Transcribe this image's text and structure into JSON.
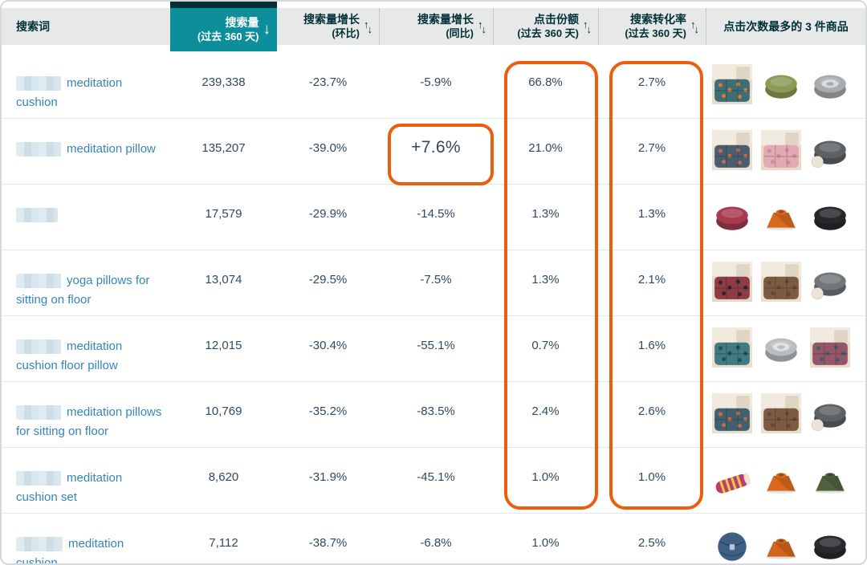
{
  "colors": {
    "ink": "#002f36",
    "teal": "#0d8e9b",
    "link": "#3585b8",
    "value_text": "#2f4a60",
    "orange": "#ec5e0d",
    "header_bg": "#e7e9e9",
    "row_line": "#e4e7e7"
  },
  "table": {
    "columns": [
      {
        "id": "term",
        "label": "搜索词",
        "sortable": false
      },
      {
        "id": "volume",
        "label": "搜索量",
        "sublabel": "(过去 360 天)",
        "sortable": true,
        "sorted": "desc"
      },
      {
        "id": "growth_mom",
        "label": "搜索量增长",
        "sublabel": "(环比)",
        "sortable": true
      },
      {
        "id": "growth_yoy",
        "label": "搜索量增长",
        "sublabel": "(同比)",
        "sortable": true
      },
      {
        "id": "click_share",
        "label": "点击份额",
        "sublabel": "(过去 360 天)",
        "sortable": true
      },
      {
        "id": "conversion",
        "label": "搜索转化率",
        "sublabel": "(过去 360 天)",
        "sortable": true
      },
      {
        "id": "top_products",
        "label": "点击次数最多的 3 件商品",
        "sortable": false
      }
    ],
    "rows": [
      {
        "term": "meditation cushion",
        "redacted": false,
        "volume": "239,338",
        "growth_mom": "-23.7%",
        "growth_yoy": "-5.9%",
        "click_share": "66.8%",
        "conversion": "2.7%",
        "highlight_yoy": false,
        "products": [
          {
            "name": "multicolor patterned floor cushion in room",
            "kind": "scene",
            "main": "#3e6d74",
            "pattern": "#d77a3f",
            "bg": "#e6dccb"
          },
          {
            "name": "green round meditation cushion",
            "kind": "zafu",
            "main": "#8b9a55"
          },
          {
            "name": "gray round meditation cushion with mandala top",
            "kind": "zafu",
            "main": "#a7abad",
            "mandala": true
          }
        ]
      },
      {
        "term": "meditation pillow",
        "redacted": false,
        "volume": "135,207",
        "growth_mom": "-39.0%",
        "growth_yoy": "+7.6%",
        "click_share": "21.0%",
        "conversion": "2.7%",
        "highlight_yoy": true,
        "products": [
          {
            "name": "multicolor patterned floor cushion in room",
            "kind": "scene",
            "main": "#4a5d6e",
            "pattern": "#c96a4a",
            "bg": "#e8dfce"
          },
          {
            "name": "pink tufted floor cushion in room",
            "kind": "scene",
            "main": "#e3aab4",
            "pattern": "#d08e9c",
            "bg": "#ead9c8"
          },
          {
            "name": "dark gray round cushion with white ball",
            "kind": "zafu",
            "main": "#5c6165",
            "ball": true
          }
        ]
      },
      {
        "term": "",
        "redacted": "full",
        "volume": "17,579",
        "growth_mom": "-29.9%",
        "growth_yoy": "-14.5%",
        "click_share": "1.3%",
        "conversion": "1.3%",
        "highlight_yoy": false,
        "products": [
          {
            "name": "maroon round meditation cushion",
            "kind": "zafu",
            "main": "#a63b4e"
          },
          {
            "name": "orange trapezoid meditation cushion",
            "kind": "trapezoid",
            "main": "#d8681c"
          },
          {
            "name": "black round meditation cushion",
            "kind": "zafu",
            "main": "#26282c"
          }
        ]
      },
      {
        "term": "yoga pillows for sitting on floor",
        "redacted": false,
        "volume": "13,074",
        "growth_mom": "-29.5%",
        "growth_yoy": "-7.5%",
        "click_share": "1.3%",
        "conversion": "2.1%",
        "highlight_yoy": false,
        "products": [
          {
            "name": "red patterned floor cushion in room",
            "kind": "scene",
            "main": "#8e3b44",
            "pattern": "#32262e",
            "bg": "#e5d9c6"
          },
          {
            "name": "brown tufted floor cushion in room",
            "kind": "scene",
            "main": "#7c5b43",
            "pattern": "#654835",
            "bg": "#ecdfd0"
          },
          {
            "name": "gray round cushion with white ball",
            "kind": "zafu",
            "main": "#71767a",
            "ball": true
          }
        ]
      },
      {
        "term": "meditation cushion floor pillow",
        "redacted": false,
        "volume": "12,015",
        "growth_mom": "-30.4%",
        "growth_yoy": "-55.1%",
        "click_share": "0.7%",
        "conversion": "1.6%",
        "highlight_yoy": false,
        "products": [
          {
            "name": "teal patterned floor cushion in room",
            "kind": "scene",
            "main": "#417a80",
            "pattern": "#224e57",
            "bg": "#e9dfcd"
          },
          {
            "name": "light gray round cushion with mandala top",
            "kind": "zafu",
            "main": "#b9bdc0",
            "mandala": true
          },
          {
            "name": "multicolor ethnic floor cushion in room",
            "kind": "scene",
            "main": "#96566a",
            "pattern": "#3f5e6e",
            "bg": "#e7ddca"
          }
        ]
      },
      {
        "term": "meditation pillows for sitting on floor",
        "redacted": false,
        "volume": "10,769",
        "growth_mom": "-35.2%",
        "growth_yoy": "-83.5%",
        "click_share": "2.4%",
        "conversion": "2.6%",
        "highlight_yoy": false,
        "products": [
          {
            "name": "multicolor patterned floor cushion in room",
            "kind": "scene",
            "main": "#41606f",
            "pattern": "#cf6a40",
            "bg": "#e8dfce"
          },
          {
            "name": "brown tufted floor cushion in room",
            "kind": "scene",
            "main": "#7c5b43",
            "pattern": "#654835",
            "bg": "#ecdfd0"
          },
          {
            "name": "dark gray round cushion with white ball",
            "kind": "zafu",
            "main": "#5c6165",
            "ball": true
          }
        ]
      },
      {
        "term": "meditation cushion set",
        "redacted": false,
        "volume": "8,620",
        "growth_mom": "-31.9%",
        "growth_yoy": "-45.1%",
        "click_share": "1.0%",
        "conversion": "1.0%",
        "highlight_yoy": false,
        "products": [
          {
            "name": "pink striped thai roll pillow",
            "kind": "roll",
            "main": "#c13a6d",
            "accent": "#e8c84a"
          },
          {
            "name": "orange trapezoid meditation cushion",
            "kind": "trapezoid",
            "main": "#d8681c"
          },
          {
            "name": "dark green trapezoid meditation cushion",
            "kind": "trapezoid",
            "main": "#50603f"
          }
        ]
      },
      {
        "term": "meditation cushion",
        "redacted": "prefix",
        "volume": "7,112",
        "growth_mom": "-38.7%",
        "growth_yoy": "-6.8%",
        "click_share": "1.0%",
        "conversion": "2.5%",
        "highlight_yoy": false,
        "products": [
          {
            "name": "blue round meditation cushion",
            "kind": "ball",
            "main": "#3e5f84"
          },
          {
            "name": "orange trapezoid meditation cushion",
            "kind": "trapezoid",
            "main": "#d2651c"
          },
          {
            "name": "black round meditation cushion",
            "kind": "zafu",
            "main": "#27292c"
          }
        ]
      }
    ]
  },
  "annotations": {
    "boxed_columns": [
      "点击份额",
      "搜索转化率"
    ],
    "boxed_value": "+7.6%",
    "highlight_color": "#ec5e0d"
  }
}
